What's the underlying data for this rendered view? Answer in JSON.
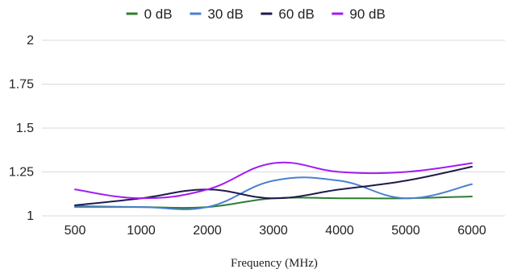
{
  "chart_data": {
    "type": "line",
    "title": "",
    "xlabel": "Frequency (MHz)",
    "ylabel": "",
    "categories": [
      "500",
      "1000",
      "2000",
      "3000",
      "4000",
      "5000",
      "6000"
    ],
    "yticks": [
      "1",
      "1.25",
      "1.5",
      "1.75",
      "2"
    ],
    "ylim": [
      1,
      2
    ],
    "grid": "horizontal",
    "legend": "top-center",
    "smooth": true,
    "series": [
      {
        "name": "0 dB",
        "color": "#2e7d32",
        "values": [
          1.055,
          1.05,
          1.05,
          1.1,
          1.1,
          1.1,
          1.11
        ]
      },
      {
        "name": "30 dB",
        "color": "#4a7fd1",
        "values": [
          1.05,
          1.05,
          1.05,
          1.2,
          1.2,
          1.1,
          1.18
        ]
      },
      {
        "name": "60 dB",
        "color": "#1e1b4b",
        "values": [
          1.06,
          1.1,
          1.15,
          1.1,
          1.15,
          1.2,
          1.28
        ]
      },
      {
        "name": "90 dB",
        "color": "#a21cf2",
        "values": [
          1.15,
          1.1,
          1.15,
          1.3,
          1.25,
          1.25,
          1.3
        ]
      }
    ]
  }
}
